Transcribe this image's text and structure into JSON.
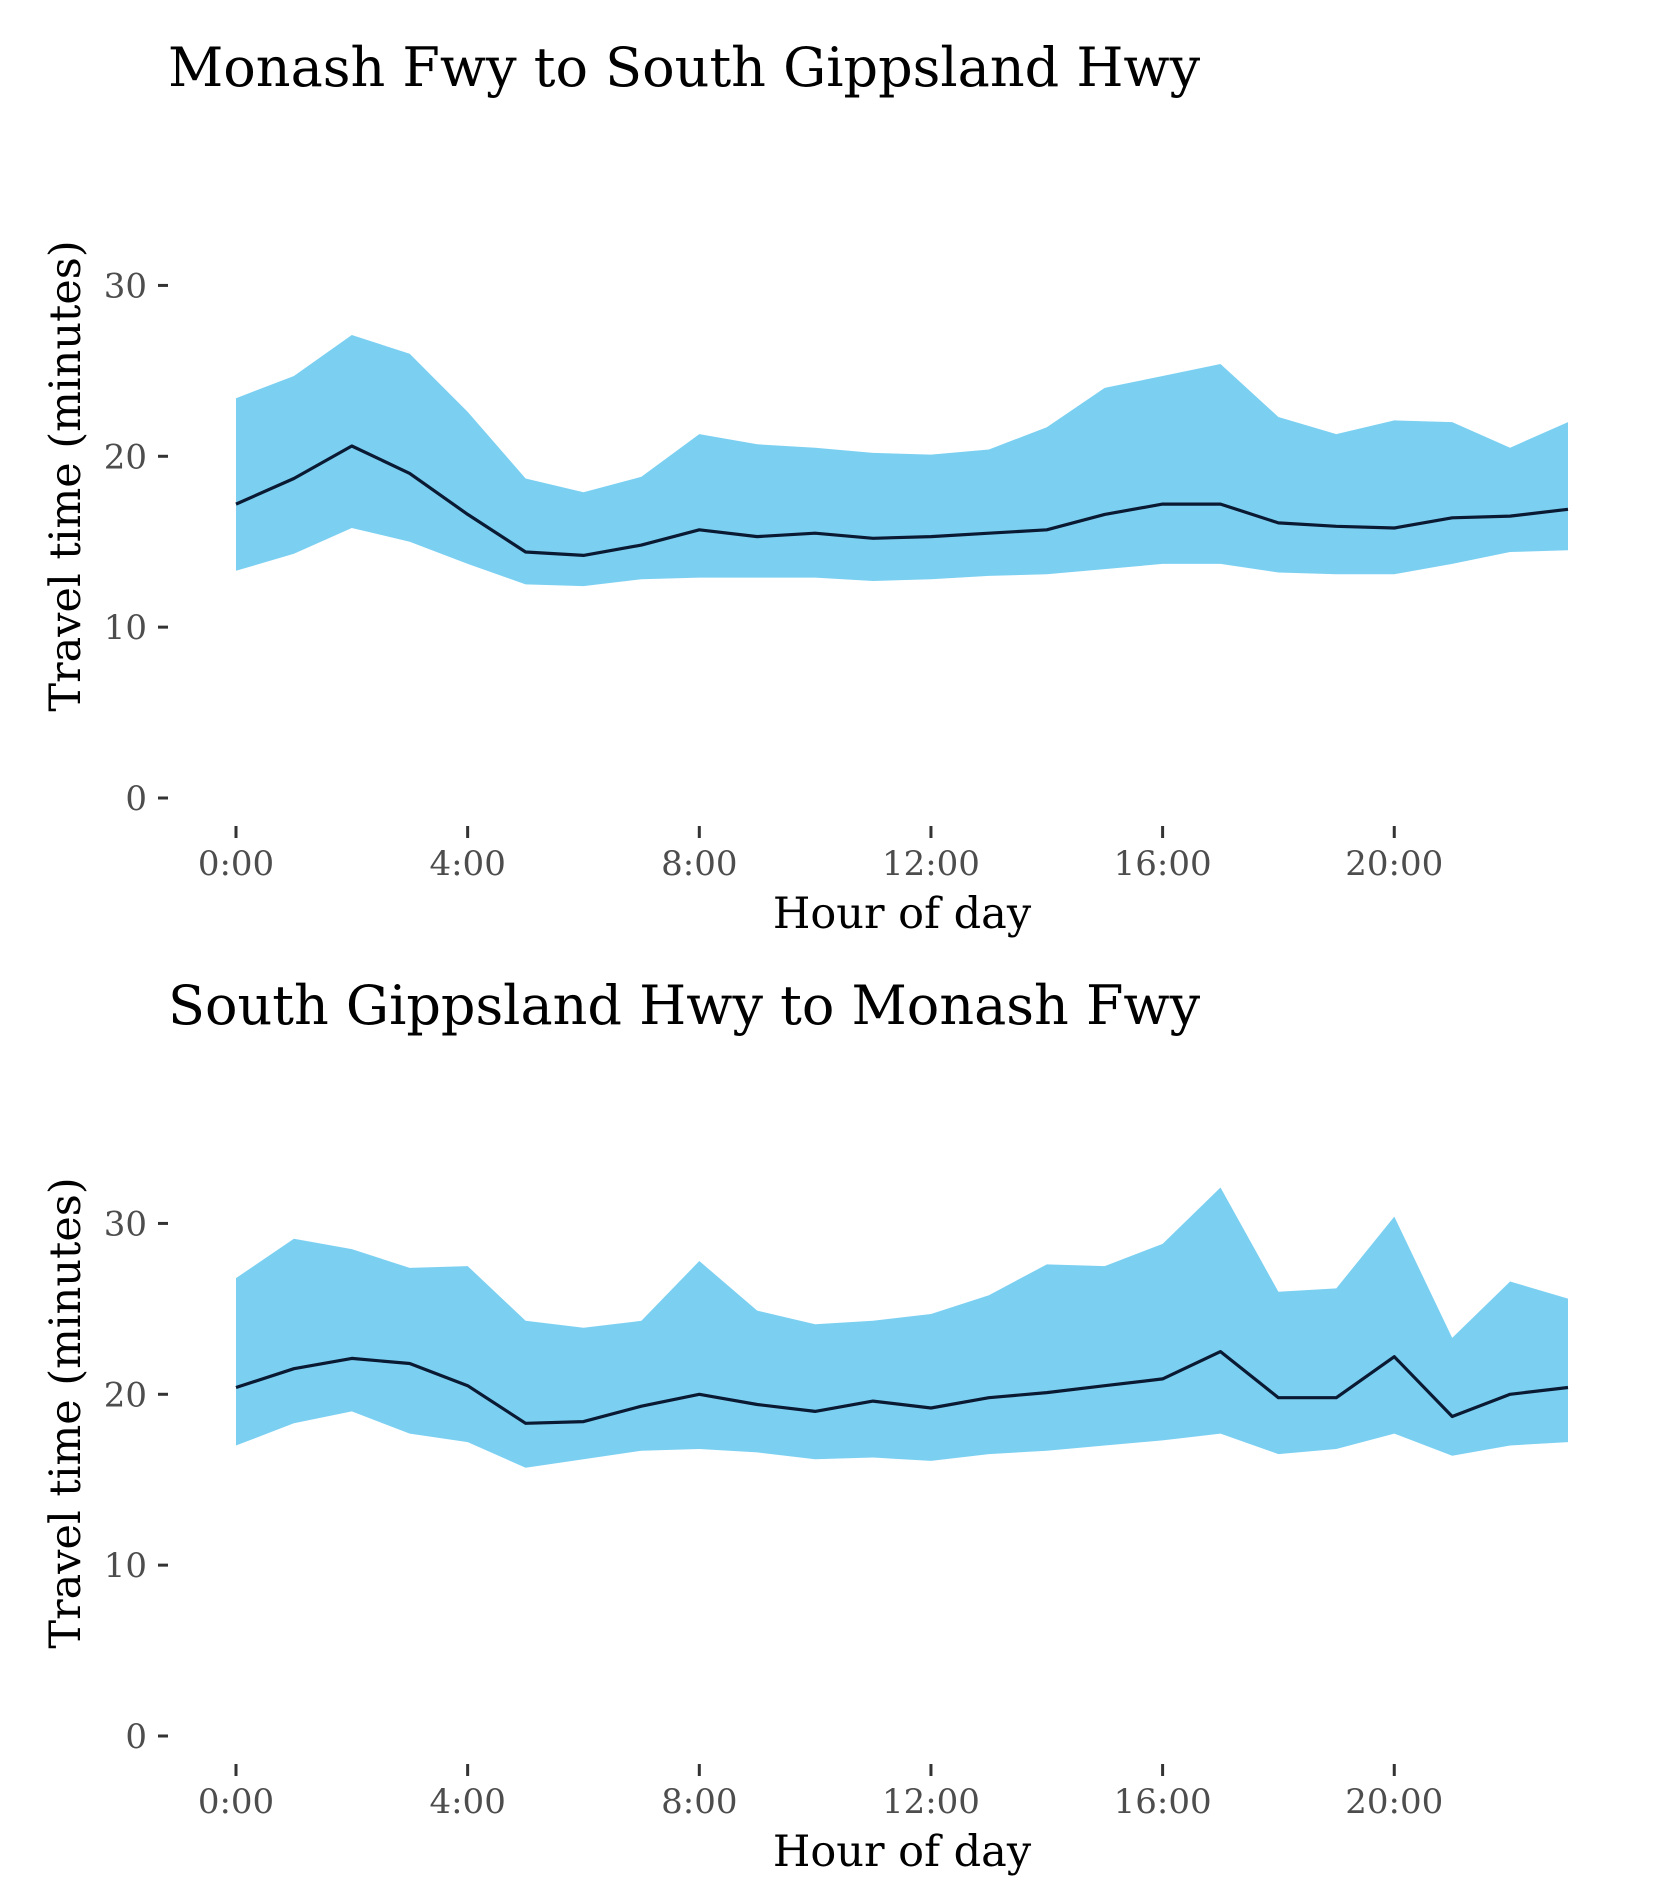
{
  "colors": {
    "band": "#7BD0F2",
    "line": "#0B1A33",
    "tick_label": "#4d4d4d",
    "tick_mark": "#333333"
  },
  "chart_data": [
    {
      "type": "area",
      "title": "Monash Fwy to South Gippsland Hwy",
      "xlabel": "Hour of day",
      "ylabel": "Travel time (minutes)",
      "x_unit": "hour",
      "xlim": [
        0,
        23
      ],
      "ylim": [
        0,
        35
      ],
      "x_ticks": [
        0,
        4,
        8,
        12,
        16,
        20
      ],
      "x_tick_labels": [
        "0:00",
        "4:00",
        "8:00",
        "12:00",
        "16:00",
        "20:00"
      ],
      "y_ticks": [
        0,
        10,
        20,
        30
      ],
      "y_tick_labels": [
        "0",
        "10",
        "20",
        "30"
      ],
      "grid": false,
      "legend": "none",
      "x": [
        0,
        1,
        2,
        3,
        4,
        5,
        6,
        7,
        8,
        9,
        10,
        11,
        12,
        13,
        14,
        15,
        16,
        17,
        18,
        19,
        20,
        21,
        22,
        23
      ],
      "series": [
        {
          "role": "band-upper",
          "values": [
            23.4,
            24.7,
            27.1,
            26.0,
            22.6,
            18.7,
            17.9,
            18.8,
            21.3,
            20.7,
            20.5,
            20.2,
            20.1,
            20.4,
            21.7,
            24.0,
            24.7,
            25.4,
            22.3,
            21.3,
            22.1,
            22.0,
            20.5,
            22.0
          ]
        },
        {
          "role": "median",
          "values": [
            17.2,
            18.7,
            20.6,
            19.0,
            16.6,
            14.4,
            14.2,
            14.8,
            15.7,
            15.3,
            15.5,
            15.2,
            15.3,
            15.5,
            15.7,
            16.6,
            17.2,
            17.2,
            16.1,
            15.9,
            15.8,
            16.4,
            16.5,
            16.9
          ]
        },
        {
          "role": "band-lower",
          "values": [
            13.3,
            14.3,
            15.8,
            15.0,
            13.7,
            12.5,
            12.4,
            12.8,
            12.9,
            12.9,
            12.9,
            12.7,
            12.8,
            13.0,
            13.1,
            13.4,
            13.7,
            13.7,
            13.2,
            13.1,
            13.1,
            13.7,
            14.4,
            14.5
          ]
        }
      ]
    },
    {
      "type": "area",
      "title": "South Gippsland Hwy to Monash Fwy",
      "xlabel": "Hour of day",
      "ylabel": "Travel time (minutes)",
      "x_unit": "hour",
      "xlim": [
        0,
        23
      ],
      "ylim": [
        0,
        35
      ],
      "x_ticks": [
        0,
        4,
        8,
        12,
        16,
        20
      ],
      "x_tick_labels": [
        "0:00",
        "4:00",
        "8:00",
        "12:00",
        "16:00",
        "20:00"
      ],
      "y_ticks": [
        0,
        10,
        20,
        30
      ],
      "y_tick_labels": [
        "0",
        "10",
        "20",
        "30"
      ],
      "grid": false,
      "legend": "none",
      "x": [
        0,
        1,
        2,
        3,
        4,
        5,
        6,
        7,
        8,
        9,
        10,
        11,
        12,
        13,
        14,
        15,
        16,
        17,
        18,
        19,
        20,
        21,
        22,
        23
      ],
      "series": [
        {
          "role": "band-upper",
          "values": [
            26.8,
            29.1,
            28.5,
            27.4,
            27.5,
            24.3,
            23.9,
            24.3,
            27.8,
            24.9,
            24.1,
            24.3,
            24.7,
            25.8,
            27.6,
            27.5,
            28.8,
            32.1,
            26.0,
            26.2,
            30.4,
            23.3,
            26.6,
            25.6
          ]
        },
        {
          "role": "median",
          "values": [
            20.4,
            21.5,
            22.1,
            21.8,
            20.5,
            18.3,
            18.4,
            19.3,
            20.0,
            19.4,
            19.0,
            19.6,
            19.2,
            19.8,
            20.1,
            20.5,
            20.9,
            22.5,
            19.8,
            19.8,
            22.2,
            18.7,
            20.0,
            20.4
          ]
        },
        {
          "role": "band-lower",
          "values": [
            17.0,
            18.3,
            19.0,
            17.7,
            17.2,
            15.7,
            16.2,
            16.7,
            16.8,
            16.6,
            16.2,
            16.3,
            16.1,
            16.5,
            16.7,
            17.0,
            17.3,
            17.7,
            16.5,
            16.8,
            17.7,
            16.4,
            17.0,
            17.2
          ]
        }
      ]
    }
  ]
}
